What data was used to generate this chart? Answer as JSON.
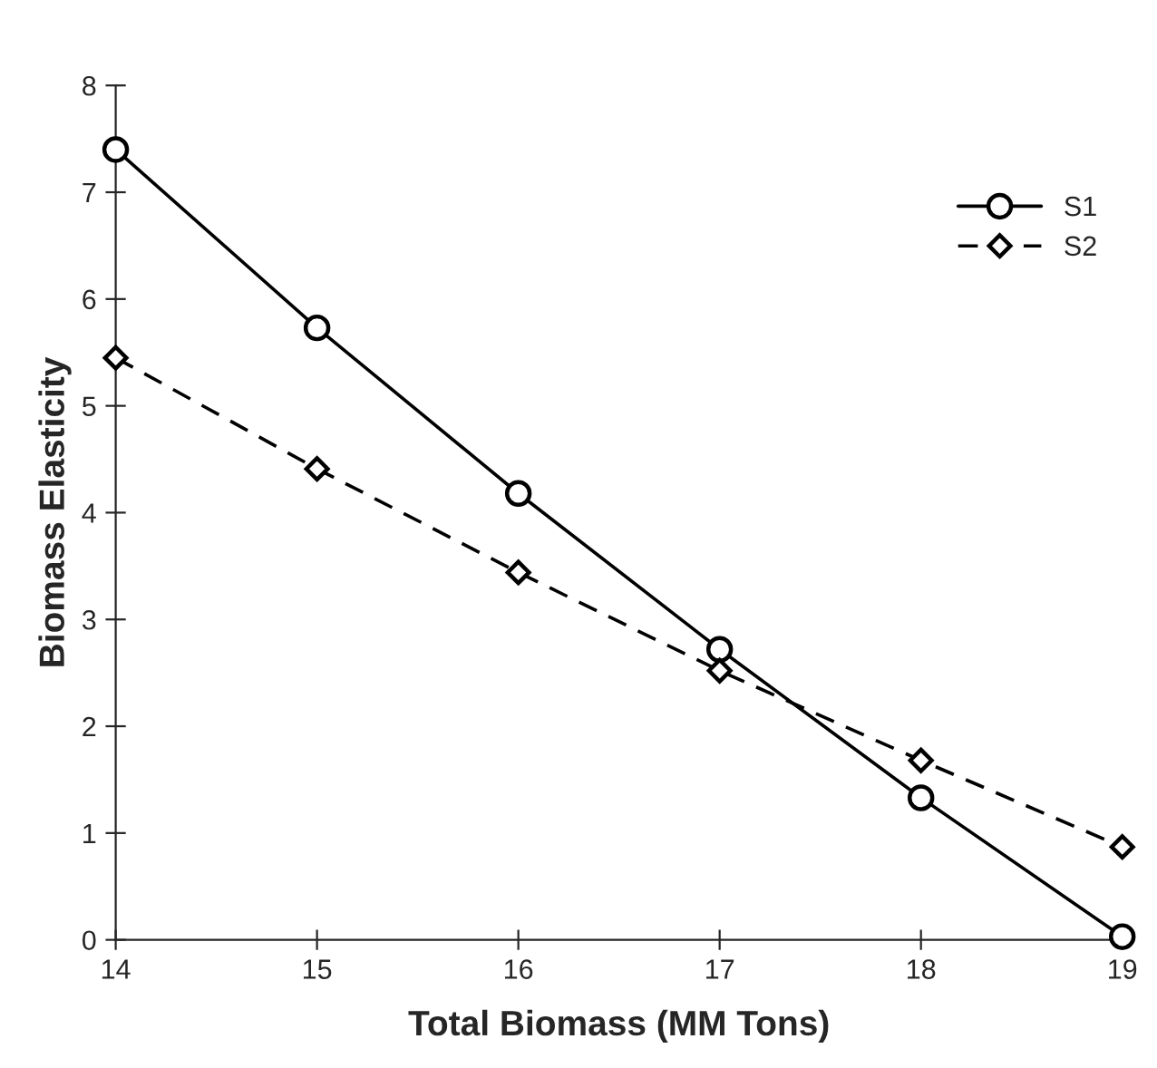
{
  "chart_data": {
    "type": "line",
    "xlabel": "Total Biomass (MM Tons)",
    "ylabel": "Biomass Elasticity",
    "x": [
      14,
      15,
      16,
      17,
      18,
      19
    ],
    "xlim": [
      14,
      19
    ],
    "xticks": [
      14,
      15,
      16,
      17,
      18,
      19
    ],
    "ylim": [
      0,
      8
    ],
    "yticks": [
      0,
      1,
      2,
      3,
      4,
      5,
      6,
      7,
      8
    ],
    "grid": false,
    "legend": "top right",
    "series": [
      {
        "name": "S1",
        "color": "#000000",
        "values": [
          7.4,
          5.73,
          4.18,
          2.72,
          1.33,
          0.03
        ],
        "marker": "circle",
        "line_style": "solid"
      },
      {
        "name": "S2",
        "color": "#000000",
        "values": [
          5.45,
          4.41,
          3.44,
          2.52,
          1.68,
          0.87
        ],
        "marker": "diamond",
        "line_style": "dashed"
      }
    ]
  }
}
